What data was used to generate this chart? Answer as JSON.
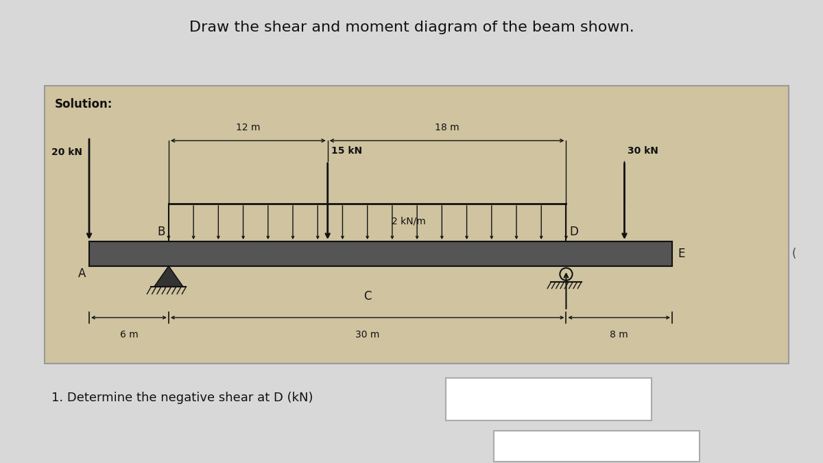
{
  "title": "Draw the shear and moment diagram of the beam shown.",
  "solution_label": "Solution:",
  "load_20kn": "20 kN",
  "load_15kn": "15 kN",
  "load_30kn": "30 kN",
  "dist_load": "2 kN/m",
  "dist_12m": "12 m",
  "dist_18m": "18 m",
  "dist_6m": "6 m",
  "dist_30m": "30 m",
  "dist_8m": "8 m",
  "label_A": "A",
  "label_B": "B",
  "label_C": "C",
  "label_D": "D",
  "label_E": "E",
  "question": "1. Determine the negative shear at D (kN)",
  "bg_color": "#cfc3a0",
  "page_bg": "#d8d8d8",
  "beam_color": "#1a1a1a"
}
